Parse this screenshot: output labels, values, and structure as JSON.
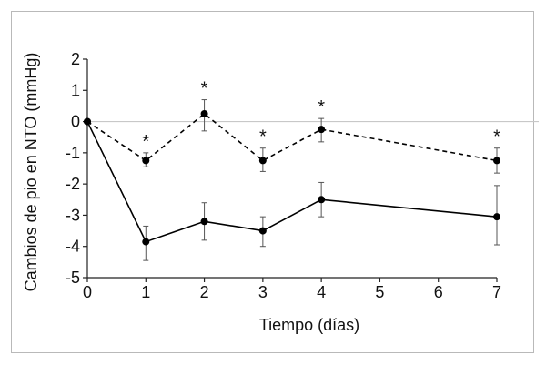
{
  "chart_data": {
    "type": "line",
    "xlabel": "Tiempo (días)",
    "ylabel": "Cambios de pio en NTO (mmHg)",
    "xlim": [
      0,
      7
    ],
    "ylim": [
      -5,
      2
    ],
    "x_ticks": [
      0,
      1,
      2,
      3,
      4,
      5,
      6,
      7
    ],
    "y_ticks": [
      2,
      1,
      0,
      -1,
      -2,
      -3,
      -4,
      -5
    ],
    "reference_line": 0,
    "series": [
      {
        "style": "dashed",
        "x": [
          0,
          1,
          2,
          3,
          4,
          7
        ],
        "y": [
          0,
          -1.25,
          0.25,
          -1.25,
          -0.25,
          -1.25
        ],
        "err_low": [
          0,
          -1.45,
          -0.3,
          -1.6,
          -0.65,
          -1.65
        ],
        "err_high": [
          0,
          -1.0,
          0.7,
          -0.85,
          0.1,
          -0.85
        ]
      },
      {
        "style": "solid",
        "x": [
          0,
          1,
          2,
          3,
          4,
          7
        ],
        "y": [
          0,
          -3.85,
          -3.2,
          -3.5,
          -2.5,
          -3.05
        ],
        "err_low": [
          0,
          -4.45,
          -3.8,
          -4.0,
          -3.05,
          -3.95
        ],
        "err_high": [
          0,
          -3.35,
          -2.6,
          -3.05,
          -1.95,
          -2.05
        ]
      }
    ],
    "annotations": [
      {
        "x": 1,
        "text": "*"
      },
      {
        "x": 2,
        "text": "*"
      },
      {
        "x": 3,
        "text": "*"
      },
      {
        "x": 4,
        "text": "*"
      },
      {
        "x": 7,
        "text": "*"
      }
    ]
  }
}
